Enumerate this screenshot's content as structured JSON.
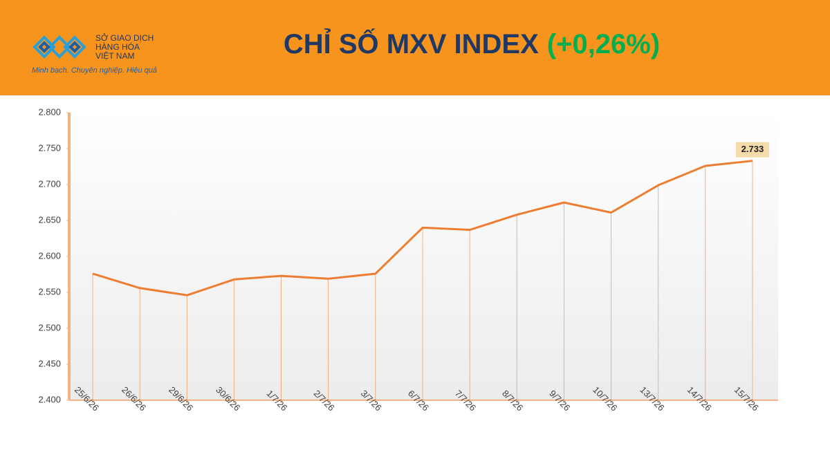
{
  "header": {
    "logo_lines": [
      "SỞ GIAO DỊCH",
      "HÀNG HÓA",
      "VIỆT NAM"
    ],
    "slogan": "Minh bạch. Chuyên nghiệp. Hiệu quả"
  },
  "chart_data": {
    "type": "line",
    "title": "CHỈ SỐ MXV INDEX",
    "subtitle": "(+0,26%)",
    "categories": [
      "25/6/26",
      "26/6/26",
      "29/6/26",
      "30/6/26",
      "1/7/26",
      "2/7/26",
      "3/7/26",
      "6/7/26",
      "7/7/26",
      "8/7/26",
      "9/7/26",
      "10/7/26",
      "13/7/26",
      "14/7/26",
      "15/7/26"
    ],
    "values": [
      2576,
      2556,
      2546,
      2568,
      2573,
      2569,
      2576,
      2640,
      2637,
      2658,
      2675,
      2661,
      2699,
      2726,
      2733
    ],
    "value_labels": [
      null,
      null,
      null,
      null,
      null,
      null,
      null,
      null,
      null,
      null,
      null,
      null,
      null,
      null,
      "2.733"
    ],
    "color": "#ed7d31",
    "ylim": [
      2400,
      2800
    ],
    "yticks": [
      {
        "value": 2400,
        "label": "2.400"
      },
      {
        "value": 2450,
        "label": "2.450"
      },
      {
        "value": 2500,
        "label": "2.500"
      },
      {
        "value": 2550,
        "label": "2.550"
      },
      {
        "value": 2600,
        "label": "2.600"
      },
      {
        "value": 2650,
        "label": "2.650"
      },
      {
        "value": 2700,
        "label": "2.700"
      },
      {
        "value": 2750,
        "label": "2.750"
      },
      {
        "value": 2800,
        "label": "2.800"
      }
    ],
    "grid": false
  }
}
